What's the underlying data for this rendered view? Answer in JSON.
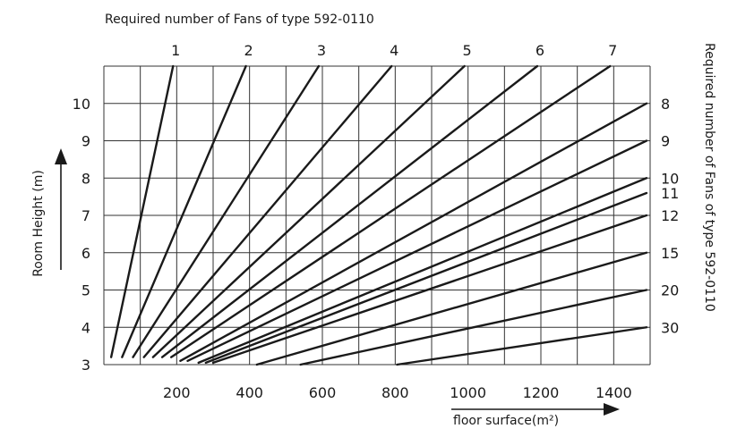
{
  "chart_data": {
    "type": "line",
    "title": "Required number of Fans of type 592-0110",
    "right_label": "Required number of Fans of type 592-0110",
    "xlabel": "floor surface(m²)",
    "ylabel": "Room Height (m)",
    "xlim": [
      0,
      1500
    ],
    "ylim": [
      3,
      11
    ],
    "x_ticks": [
      200,
      400,
      600,
      800,
      1000,
      1200,
      1400
    ],
    "y_ticks": [
      3,
      4,
      5,
      6,
      7,
      8,
      9,
      10
    ],
    "x_tick_labels": [
      "200",
      "400",
      "600",
      "800",
      "1000",
      "1200",
      "1400"
    ],
    "y_tick_labels": [
      "3",
      "4",
      "5",
      "6",
      "7",
      "8",
      "9",
      "10"
    ],
    "grid": true,
    "series": [
      {
        "name": "1",
        "x": [
          20,
          190
        ],
        "y": [
          3.2,
          11
        ]
      },
      {
        "name": "2",
        "x": [
          50,
          390
        ],
        "y": [
          3.2,
          11
        ]
      },
      {
        "name": "3",
        "x": [
          80,
          590
        ],
        "y": [
          3.2,
          11
        ]
      },
      {
        "name": "4",
        "x": [
          110,
          790
        ],
        "y": [
          3.2,
          11
        ]
      },
      {
        "name": "5",
        "x": [
          135,
          990
        ],
        "y": [
          3.2,
          11
        ]
      },
      {
        "name": "6",
        "x": [
          160,
          1190
        ],
        "y": [
          3.2,
          11
        ]
      },
      {
        "name": "7",
        "x": [
          185,
          1390
        ],
        "y": [
          3.2,
          11
        ]
      },
      {
        "name": "8",
        "x": [
          210,
          1490
        ],
        "y": [
          3.1,
          10
        ]
      },
      {
        "name": "9",
        "x": [
          230,
          1490
        ],
        "y": [
          3.1,
          9
        ]
      },
      {
        "name": "10",
        "x": [
          260,
          1490
        ],
        "y": [
          3.05,
          8
        ]
      },
      {
        "name": "11",
        "x": [
          280,
          1490
        ],
        "y": [
          3.05,
          7.6
        ]
      },
      {
        "name": "12",
        "x": [
          300,
          1490
        ],
        "y": [
          3.05,
          7
        ]
      },
      {
        "name": "15",
        "x": [
          420,
          1490
        ],
        "y": [
          3.0,
          6
        ]
      },
      {
        "name": "20",
        "x": [
          540,
          1490
        ],
        "y": [
          3.0,
          5
        ]
      },
      {
        "name": "30",
        "x": [
          805,
          1490
        ],
        "y": [
          3.0,
          4
        ]
      }
    ]
  }
}
